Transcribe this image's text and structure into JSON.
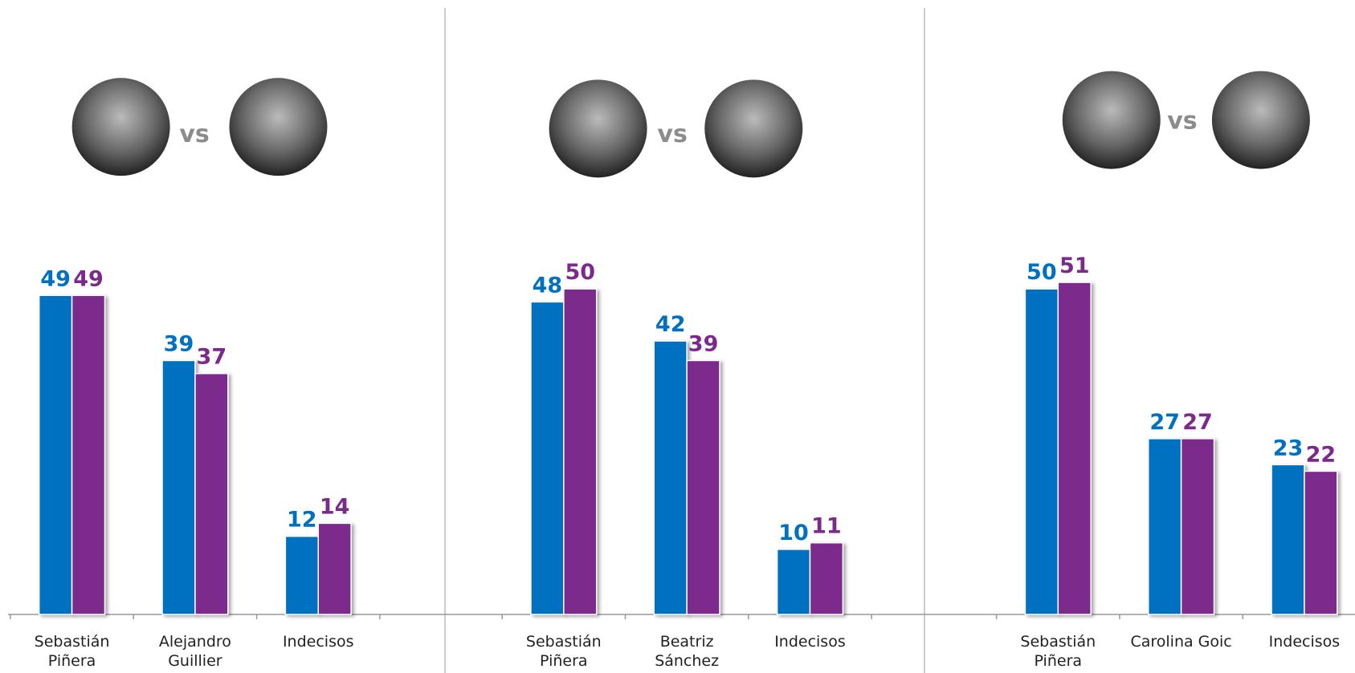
{
  "chart_data": [
    {
      "type": "bar",
      "annotation": "vs",
      "categories": [
        "Sebastián\nPiñera",
        "Alejandro\nGuillier",
        "Indecisos"
      ],
      "series": [
        {
          "color": "#0070c0",
          "values": [
            49,
            39,
            12
          ]
        },
        {
          "color": "#7b2a8c",
          "values": [
            49,
            37,
            14
          ]
        }
      ],
      "ylim": [
        0,
        60
      ]
    },
    {
      "type": "bar",
      "annotation": "vs",
      "categories": [
        "Sebastián\nPiñera",
        "Beatriz Sánchez",
        "Indecisos"
      ],
      "series": [
        {
          "color": "#0070c0",
          "values": [
            48,
            42,
            10
          ]
        },
        {
          "color": "#7b2a8c",
          "values": [
            50,
            39,
            11
          ]
        }
      ],
      "ylim": [
        0,
        60
      ]
    },
    {
      "type": "bar",
      "annotation": "vs",
      "categories": [
        "Sebastián\nPiñera",
        "Carolina Goic",
        "Indecisos"
      ],
      "series": [
        {
          "color": "#0070c0",
          "values": [
            50,
            27,
            23
          ]
        },
        {
          "color": "#7b2a8c",
          "values": [
            51,
            27,
            22
          ]
        }
      ],
      "ylim": [
        0,
        60
      ]
    }
  ]
}
